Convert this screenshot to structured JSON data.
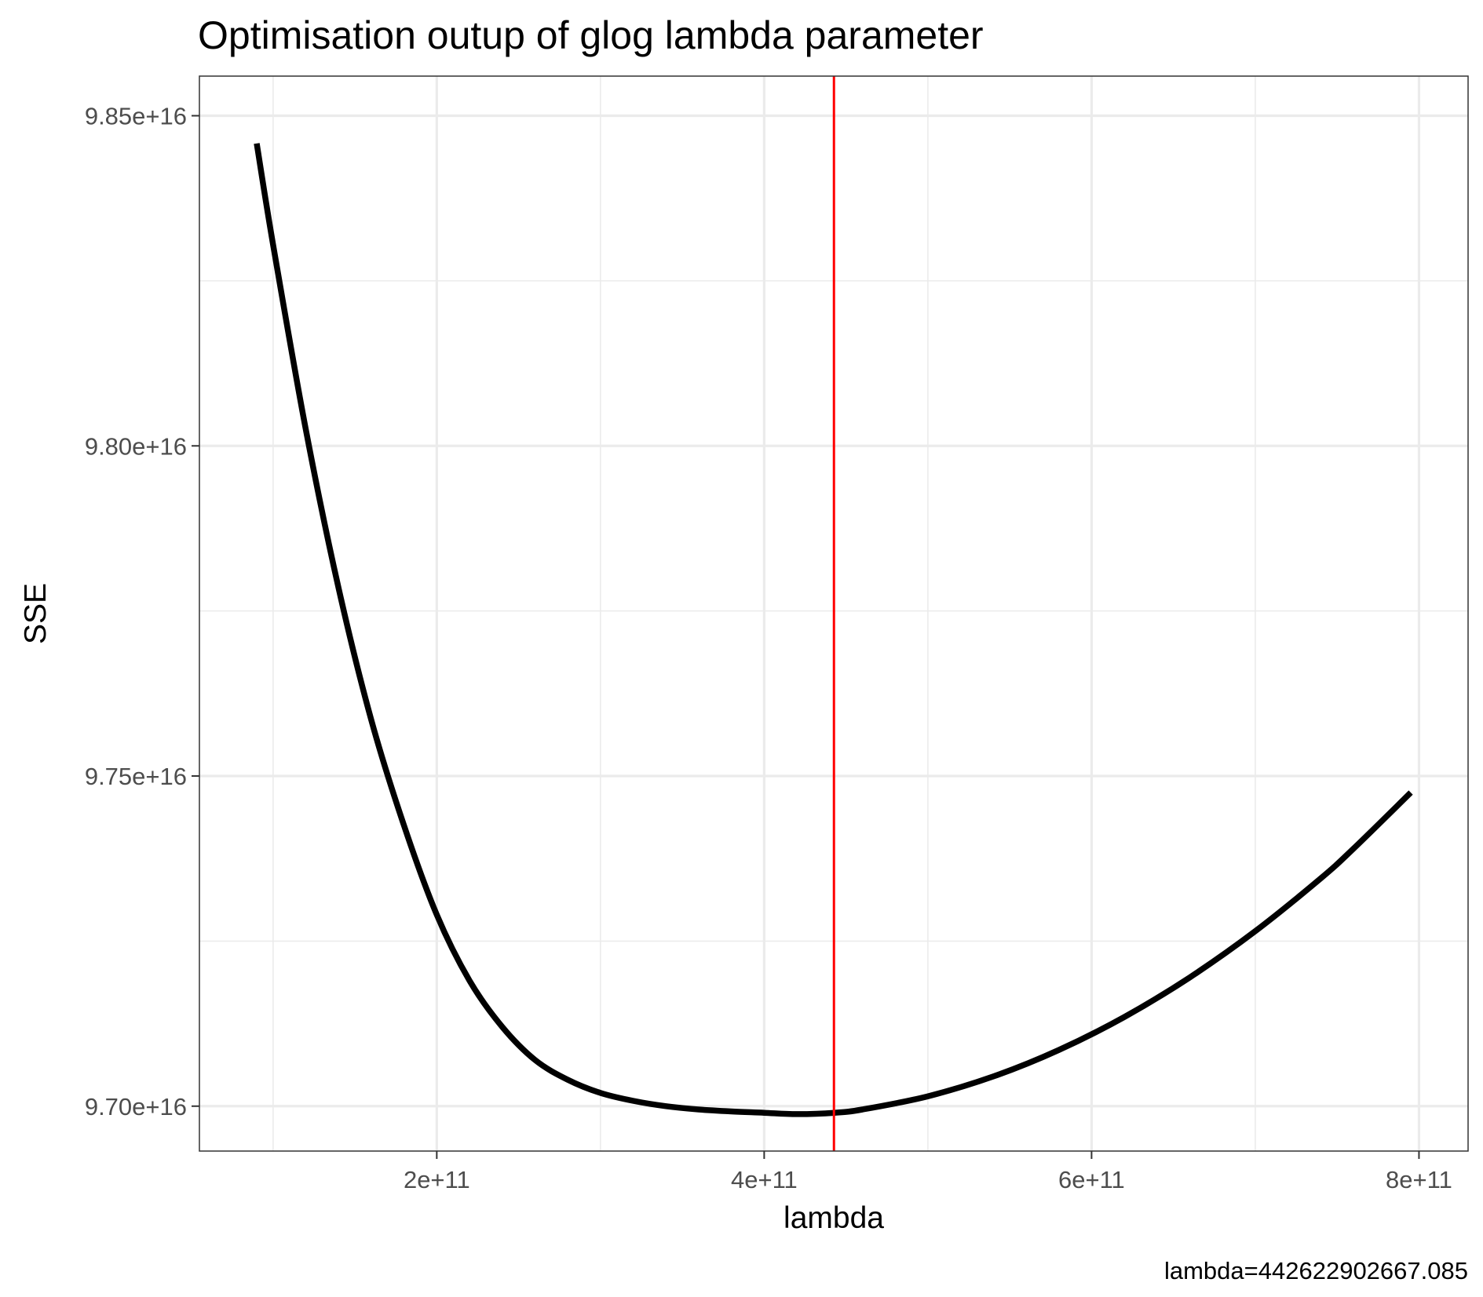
{
  "chart_data": {
    "type": "line",
    "title": "Optimisation outup of glog lambda parameter",
    "xlabel": "lambda",
    "ylabel": "SSE",
    "caption": "lambda=442622902667.085",
    "xlim": [
      55000000000.0,
      830000000000.0
    ],
    "ylim": [
      9.6932e+16,
      9.856e+16
    ],
    "x_ticks": [
      200000000000.0,
      400000000000.0,
      600000000000.0,
      800000000000.0
    ],
    "x_tick_labels": [
      "2e+11",
      "4e+11",
      "6e+11",
      "8e+11"
    ],
    "x_minor_ticks": [
      100000000000.0,
      300000000000.0,
      500000000000.0,
      700000000000.0
    ],
    "y_ticks": [
      9.7e+16,
      9.75e+16,
      9.8e+16,
      9.85e+16
    ],
    "y_tick_labels": [
      "9.70e+16",
      "9.75e+16",
      "9.80e+16",
      "9.85e+16"
    ],
    "y_minor_ticks": [
      9.725e+16,
      9.775e+16,
      9.825e+16
    ],
    "grid": true,
    "series": [
      {
        "color": "#000000",
        "x": [
          90000000000.0,
          100000000000.0,
          120000000000.0,
          140000000000.0,
          160000000000.0,
          180000000000.0,
          200000000000.0,
          220000000000.0,
          240000000000.0,
          260000000000.0,
          280000000000.0,
          300000000000.0,
          320000000000.0,
          340000000000.0,
          360000000000.0,
          380000000000.0,
          400000000000.0,
          420000000000.0,
          443000000000.0,
          460000000000.0,
          500000000000.0,
          540000000000.0,
          580000000000.0,
          620000000000.0,
          660000000000.0,
          700000000000.0,
          740000000000.0,
          760000000000.0,
          795000000000.0
        ],
        "y": [
          9.8458e+16,
          9.8305e+16,
          9.8025e+16,
          9.7785e+16,
          9.7585e+16,
          9.7425e+16,
          9.729e+16,
          9.719e+16,
          9.712e+16,
          9.707e+16,
          9.704e+16,
          9.702e+16,
          9.7008e+16,
          9.7e+16,
          9.6995e+16,
          9.6992e+16,
          9.699e+16,
          9.6988e+16,
          9.699e+16,
          9.6995e+16,
          9.7015e+16,
          9.7045e+16,
          9.7085e+16,
          9.7135e+16,
          9.7195e+16,
          9.7265e+16,
          9.7345e+16,
          9.739e+16,
          9.7475e+16
        ]
      }
    ],
    "vline": {
      "x": 442622902667.085,
      "color": "#ff0000"
    }
  }
}
